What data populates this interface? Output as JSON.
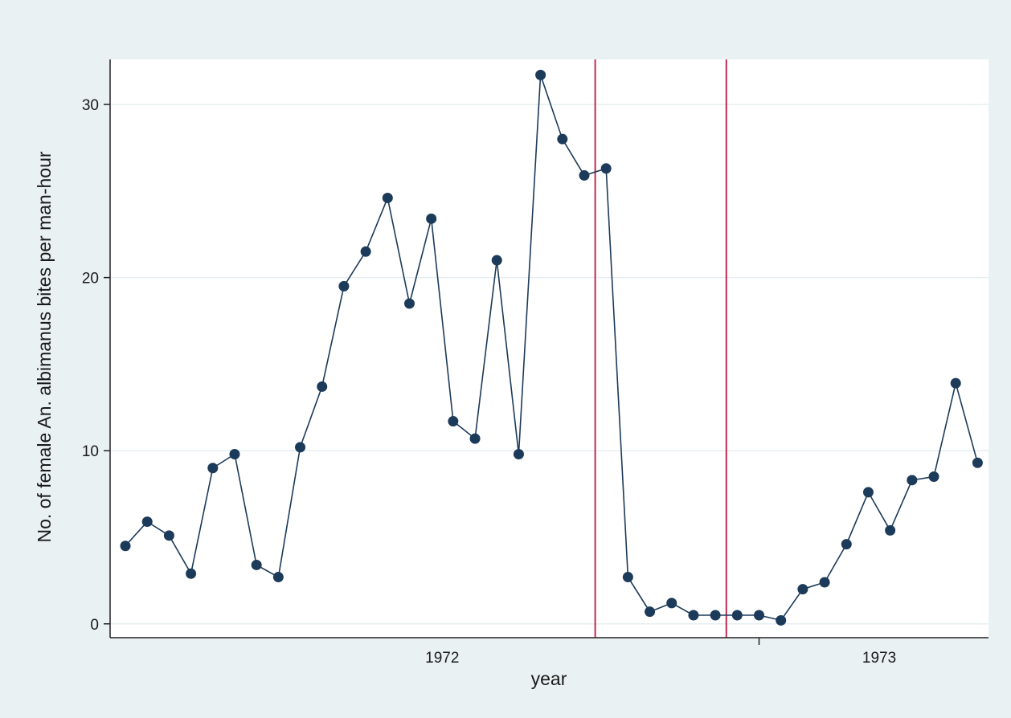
{
  "chart_data": {
    "type": "line",
    "xlabel": "year",
    "ylabel": "No. of female An. albimanus bites per man-hour",
    "ylim": [
      -0.8,
      32.6
    ],
    "y_ticks": [
      0,
      10,
      20,
      30
    ],
    "x_ticks": [
      {
        "position": 14.5,
        "label": "1972"
      },
      {
        "position": 34.5,
        "label": "1973"
      }
    ],
    "x_major_tick_mark": 29,
    "x_range": [
      -0.7,
      39.5
    ],
    "vertical_lines": [
      21.5,
      27.5
    ],
    "grid": true,
    "legend": "none",
    "series": [
      {
        "x": [
          0,
          1,
          2,
          3,
          4,
          5,
          6,
          7,
          8,
          9,
          10,
          11,
          12,
          13,
          14,
          15,
          16,
          17,
          18,
          19,
          20,
          21,
          22,
          23,
          24,
          25,
          26,
          27,
          28,
          29,
          30,
          31,
          32,
          33,
          34,
          35,
          36,
          37,
          38,
          39
        ],
        "values": [
          4.5,
          5.9,
          5.1,
          2.9,
          9.0,
          9.8,
          3.4,
          2.7,
          10.2,
          13.7,
          19.5,
          21.5,
          24.6,
          18.5,
          23.4,
          11.7,
          10.7,
          21.0,
          9.8,
          31.7,
          28.0,
          25.9,
          26.3,
          2.7,
          0.7,
          1.2,
          0.5,
          0.5,
          0.5,
          0.5,
          0.2,
          2.0,
          2.4,
          4.6,
          7.6,
          5.4,
          8.3,
          8.5,
          13.9,
          9.3
        ],
        "color": "#1c3a5a"
      }
    ],
    "colors": {
      "outer_background": "#eaf1f3",
      "plot_background": "#ffffff",
      "gridline": "#e6eef1",
      "vertical_line": "#c0143c",
      "series": "#1c3a5a"
    }
  }
}
